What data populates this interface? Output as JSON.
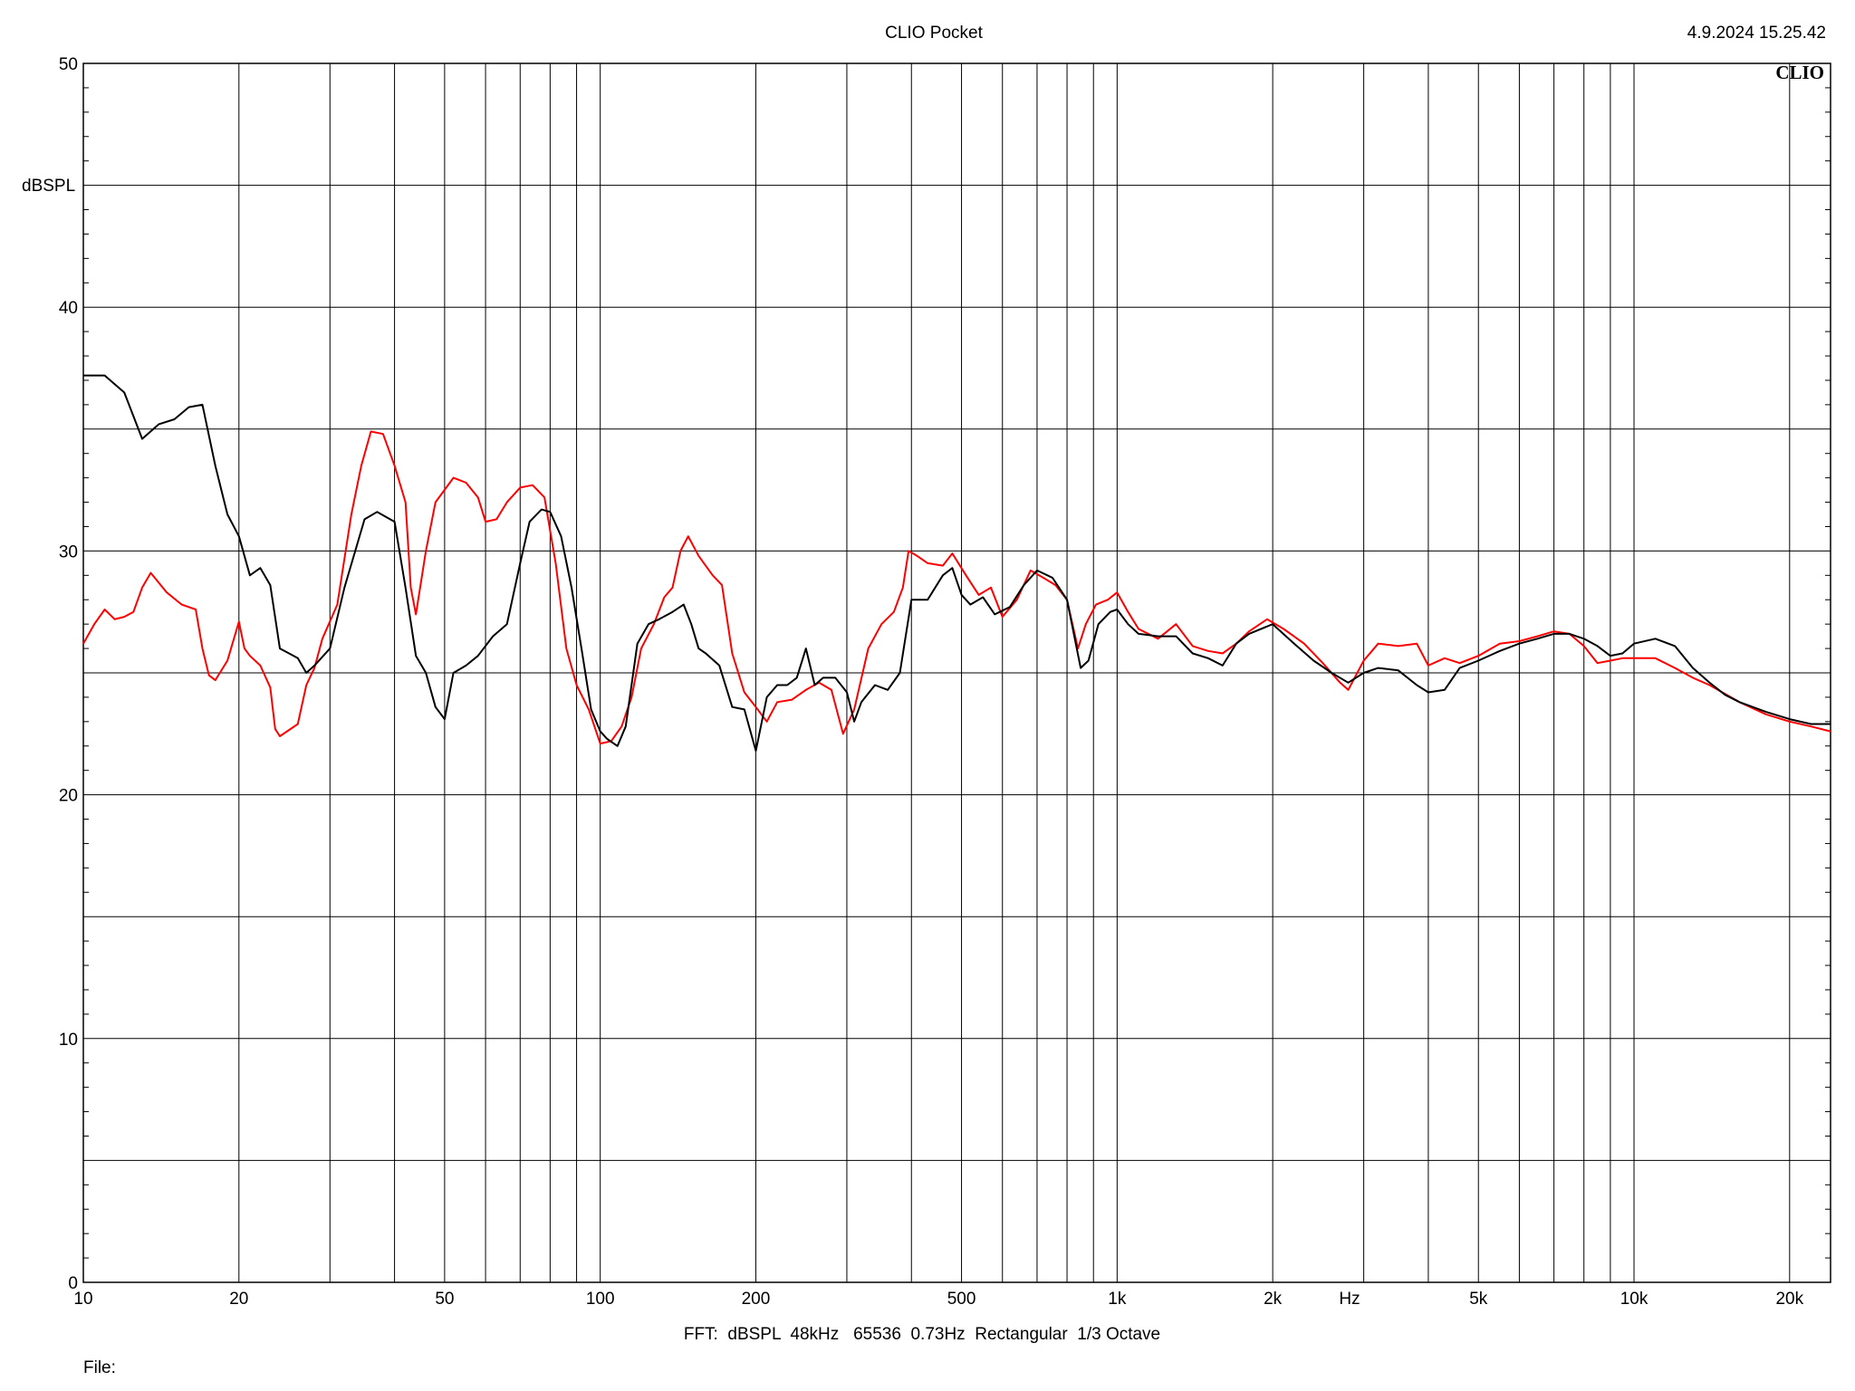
{
  "header": {
    "title": "CLIO Pocket",
    "timestamp": "4.9.2024 15.25.42",
    "brand": "CLIO"
  },
  "footer": {
    "settings": "FFT:  dBSPL  48kHz   65536  0.73Hz  Rectangular  1/3 Octave",
    "file_label": "File:"
  },
  "chart_data": {
    "type": "line",
    "ylabel": "dBSPL",
    "xlabel": "Hz",
    "xscale": "log",
    "xlim": [
      10,
      24000
    ],
    "ylim": [
      0,
      50
    ],
    "grid": true,
    "x_tick_labels": [
      {
        "value": 10,
        "label": "10"
      },
      {
        "value": 20,
        "label": "20"
      },
      {
        "value": 50,
        "label": "50"
      },
      {
        "value": 100,
        "label": "100"
      },
      {
        "value": 200,
        "label": "200"
      },
      {
        "value": 500,
        "label": "500"
      },
      {
        "value": 1000,
        "label": "1k"
      },
      {
        "value": 2000,
        "label": "2k"
      },
      {
        "value": 5000,
        "label": "5k"
      },
      {
        "value": 10000,
        "label": "10k"
      },
      {
        "value": 20000,
        "label": "20k"
      }
    ],
    "y_tick_labels": [
      {
        "value": 0,
        "label": "0"
      },
      {
        "value": 10,
        "label": "10"
      },
      {
        "value": 20,
        "label": "20"
      },
      {
        "value": 30,
        "label": "30"
      },
      {
        "value": 40,
        "label": "40"
      },
      {
        "value": 50,
        "label": "50"
      }
    ],
    "series": [
      {
        "color": "#000000",
        "points": [
          [
            10,
            37.2
          ],
          [
            11,
            37.2
          ],
          [
            12,
            36.5
          ],
          [
            13,
            34.6
          ],
          [
            14,
            35.2
          ],
          [
            15,
            35.4
          ],
          [
            16,
            35.9
          ],
          [
            17,
            36.0
          ],
          [
            18,
            33.5
          ],
          [
            19,
            31.5
          ],
          [
            20,
            30.6
          ],
          [
            21,
            29.0
          ],
          [
            22,
            29.3
          ],
          [
            23,
            28.6
          ],
          [
            24,
            26.0
          ],
          [
            25,
            25.8
          ],
          [
            26,
            25.6
          ],
          [
            27,
            25.0
          ],
          [
            28,
            25.3
          ],
          [
            30,
            26.0
          ],
          [
            32,
            28.5
          ],
          [
            35,
            31.3
          ],
          [
            37,
            31.6
          ],
          [
            40,
            31.2
          ],
          [
            42,
            28.5
          ],
          [
            44,
            25.7
          ],
          [
            46,
            25.0
          ],
          [
            48,
            23.6
          ],
          [
            50,
            23.1
          ],
          [
            52,
            25.0
          ],
          [
            55,
            25.3
          ],
          [
            58,
            25.7
          ],
          [
            62,
            26.5
          ],
          [
            66,
            27.0
          ],
          [
            70,
            29.5
          ],
          [
            73,
            31.2
          ],
          [
            77,
            31.7
          ],
          [
            80,
            31.6
          ],
          [
            84,
            30.6
          ],
          [
            88,
            28.5
          ],
          [
            92,
            26.0
          ],
          [
            96,
            23.5
          ],
          [
            100,
            22.6
          ],
          [
            103,
            22.3
          ],
          [
            108,
            22.0
          ],
          [
            112,
            22.8
          ],
          [
            118,
            26.2
          ],
          [
            124,
            27.0
          ],
          [
            130,
            27.2
          ],
          [
            138,
            27.5
          ],
          [
            145,
            27.8
          ],
          [
            150,
            27.0
          ],
          [
            155,
            26.0
          ],
          [
            160,
            25.8
          ],
          [
            170,
            25.3
          ],
          [
            180,
            23.6
          ],
          [
            190,
            23.5
          ],
          [
            200,
            21.8
          ],
          [
            210,
            24.0
          ],
          [
            220,
            24.5
          ],
          [
            230,
            24.5
          ],
          [
            240,
            24.8
          ],
          [
            250,
            26.0
          ],
          [
            260,
            24.5
          ],
          [
            270,
            24.8
          ],
          [
            285,
            24.8
          ],
          [
            300,
            24.2
          ],
          [
            310,
            23.0
          ],
          [
            320,
            23.8
          ],
          [
            340,
            24.5
          ],
          [
            360,
            24.3
          ],
          [
            380,
            25.0
          ],
          [
            400,
            28.0
          ],
          [
            430,
            28.0
          ],
          [
            460,
            29.0
          ],
          [
            480,
            29.3
          ],
          [
            500,
            28.2
          ],
          [
            520,
            27.8
          ],
          [
            550,
            28.1
          ],
          [
            580,
            27.4
          ],
          [
            620,
            27.7
          ],
          [
            660,
            28.6
          ],
          [
            700,
            29.2
          ],
          [
            750,
            28.9
          ],
          [
            800,
            28.0
          ],
          [
            850,
            25.2
          ],
          [
            880,
            25.5
          ],
          [
            920,
            27.0
          ],
          [
            970,
            27.5
          ],
          [
            1000,
            27.6
          ],
          [
            1050,
            27.0
          ],
          [
            1100,
            26.6
          ],
          [
            1200,
            26.5
          ],
          [
            1300,
            26.5
          ],
          [
            1400,
            25.8
          ],
          [
            1500,
            25.6
          ],
          [
            1600,
            25.3
          ],
          [
            1700,
            26.2
          ],
          [
            1800,
            26.6
          ],
          [
            2000,
            27.0
          ],
          [
            2200,
            26.2
          ],
          [
            2400,
            25.5
          ],
          [
            2600,
            25.0
          ],
          [
            2800,
            24.6
          ],
          [
            3000,
            25.0
          ],
          [
            3200,
            25.2
          ],
          [
            3500,
            25.1
          ],
          [
            3800,
            24.5
          ],
          [
            4000,
            24.2
          ],
          [
            4300,
            24.3
          ],
          [
            4600,
            25.2
          ],
          [
            5000,
            25.5
          ],
          [
            5500,
            25.9
          ],
          [
            6000,
            26.2
          ],
          [
            6500,
            26.4
          ],
          [
            7000,
            26.6
          ],
          [
            7500,
            26.6
          ],
          [
            8000,
            26.4
          ],
          [
            8500,
            26.1
          ],
          [
            9000,
            25.7
          ],
          [
            9500,
            25.8
          ],
          [
            10000,
            26.2
          ],
          [
            11000,
            26.4
          ],
          [
            12000,
            26.1
          ],
          [
            13000,
            25.2
          ],
          [
            14000,
            24.6
          ],
          [
            15000,
            24.1
          ],
          [
            16000,
            23.8
          ],
          [
            18000,
            23.4
          ],
          [
            20000,
            23.1
          ],
          [
            22000,
            22.9
          ],
          [
            24000,
            22.9
          ]
        ]
      },
      {
        "color": "#ff0000",
        "points": [
          [
            10,
            26.2
          ],
          [
            10.5,
            27.0
          ],
          [
            11,
            27.6
          ],
          [
            11.5,
            27.2
          ],
          [
            12,
            27.3
          ],
          [
            12.5,
            27.5
          ],
          [
            13,
            28.5
          ],
          [
            13.5,
            29.1
          ],
          [
            14.5,
            28.3
          ],
          [
            15.5,
            27.8
          ],
          [
            16.5,
            27.6
          ],
          [
            17,
            26.0
          ],
          [
            17.5,
            24.9
          ],
          [
            18,
            24.7
          ],
          [
            19,
            25.5
          ],
          [
            20,
            27.1
          ],
          [
            20.5,
            26.0
          ],
          [
            21,
            25.7
          ],
          [
            22,
            25.3
          ],
          [
            23,
            24.4
          ],
          [
            23.5,
            22.7
          ],
          [
            24,
            22.4
          ],
          [
            26,
            22.9
          ],
          [
            27,
            24.5
          ],
          [
            28,
            25.2
          ],
          [
            29,
            26.4
          ],
          [
            31,
            27.8
          ],
          [
            33,
            31.5
          ],
          [
            34.5,
            33.5
          ],
          [
            36,
            34.9
          ],
          [
            38,
            34.8
          ],
          [
            40,
            33.5
          ],
          [
            42,
            32.0
          ],
          [
            43,
            28.5
          ],
          [
            44,
            27.4
          ],
          [
            46,
            30.0
          ],
          [
            48,
            32.0
          ],
          [
            52,
            33.0
          ],
          [
            55,
            32.8
          ],
          [
            58,
            32.2
          ],
          [
            60,
            31.2
          ],
          [
            63,
            31.3
          ],
          [
            66,
            32.0
          ],
          [
            70,
            32.6
          ],
          [
            74,
            32.7
          ],
          [
            78,
            32.2
          ],
          [
            82,
            29.5
          ],
          [
            86,
            26.0
          ],
          [
            90,
            24.5
          ],
          [
            95,
            23.5
          ],
          [
            100,
            22.1
          ],
          [
            105,
            22.2
          ],
          [
            110,
            22.8
          ],
          [
            115,
            24.0
          ],
          [
            120,
            26.0
          ],
          [
            127,
            27.0
          ],
          [
            133,
            28.1
          ],
          [
            138,
            28.5
          ],
          [
            143,
            30.0
          ],
          [
            148,
            30.6
          ],
          [
            155,
            29.8
          ],
          [
            165,
            29.0
          ],
          [
            172,
            28.6
          ],
          [
            180,
            25.8
          ],
          [
            190,
            24.2
          ],
          [
            200,
            23.6
          ],
          [
            210,
            23.0
          ],
          [
            220,
            23.8
          ],
          [
            235,
            23.9
          ],
          [
            250,
            24.3
          ],
          [
            265,
            24.6
          ],
          [
            280,
            24.3
          ],
          [
            295,
            22.5
          ],
          [
            310,
            23.5
          ],
          [
            330,
            26.0
          ],
          [
            350,
            27.0
          ],
          [
            370,
            27.5
          ],
          [
            385,
            28.5
          ],
          [
            395,
            30.0
          ],
          [
            410,
            29.8
          ],
          [
            430,
            29.5
          ],
          [
            460,
            29.4
          ],
          [
            480,
            29.9
          ],
          [
            510,
            29.0
          ],
          [
            540,
            28.2
          ],
          [
            570,
            28.5
          ],
          [
            600,
            27.3
          ],
          [
            640,
            28.0
          ],
          [
            680,
            29.2
          ],
          [
            720,
            28.9
          ],
          [
            760,
            28.6
          ],
          [
            800,
            28.0
          ],
          [
            840,
            26.0
          ],
          [
            870,
            27.0
          ],
          [
            910,
            27.8
          ],
          [
            960,
            28.0
          ],
          [
            1000,
            28.3
          ],
          [
            1050,
            27.5
          ],
          [
            1100,
            26.8
          ],
          [
            1200,
            26.4
          ],
          [
            1300,
            27.0
          ],
          [
            1400,
            26.1
          ],
          [
            1500,
            25.9
          ],
          [
            1600,
            25.8
          ],
          [
            1700,
            26.2
          ],
          [
            1800,
            26.7
          ],
          [
            1950,
            27.2
          ],
          [
            2100,
            26.8
          ],
          [
            2300,
            26.2
          ],
          [
            2500,
            25.4
          ],
          [
            2700,
            24.6
          ],
          [
            2800,
            24.3
          ],
          [
            3000,
            25.5
          ],
          [
            3200,
            26.2
          ],
          [
            3500,
            26.1
          ],
          [
            3800,
            26.2
          ],
          [
            4000,
            25.3
          ],
          [
            4300,
            25.6
          ],
          [
            4600,
            25.4
          ],
          [
            5000,
            25.7
          ],
          [
            5500,
            26.2
          ],
          [
            6000,
            26.3
          ],
          [
            6500,
            26.5
          ],
          [
            7000,
            26.7
          ],
          [
            7500,
            26.6
          ],
          [
            8000,
            26.1
          ],
          [
            8500,
            25.4
          ],
          [
            9000,
            25.5
          ],
          [
            9500,
            25.6
          ],
          [
            10000,
            25.6
          ],
          [
            11000,
            25.6
          ],
          [
            12000,
            25.2
          ],
          [
            13000,
            24.8
          ],
          [
            14000,
            24.5
          ],
          [
            16000,
            23.8
          ],
          [
            18000,
            23.3
          ],
          [
            20000,
            23.0
          ],
          [
            22000,
            22.8
          ],
          [
            24000,
            22.6
          ]
        ]
      }
    ]
  }
}
